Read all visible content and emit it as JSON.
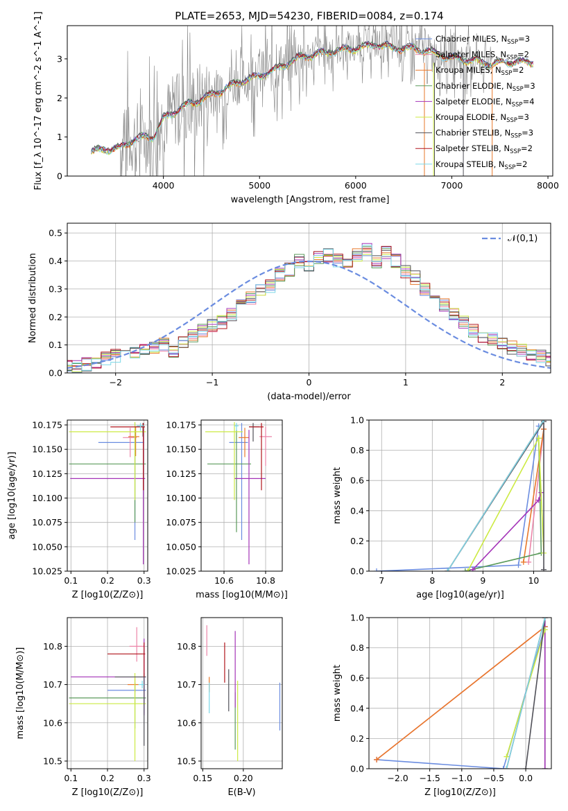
{
  "figure_title": "PLATE=2653, MJD=54230, FIBERID=0084, z=0.174",
  "colors": {
    "Chabrier MILES": "#6a8ce0",
    "Salpeter MILES": "#ec84a8",
    "Kroupa MILES": "#e8782a",
    "Chabrier ELODIE": "#5a9a5a",
    "Salpeter ELODIE": "#a434b8",
    "Kroupa ELODIE": "#ccea42",
    "Chabrier STELIB": "#505058",
    "Salpeter STELIB": "#b0141c",
    "Kroupa STELIB": "#7ad8e8",
    "data": "#808080",
    "normal": "#6a8ce0"
  },
  "chart_data": [
    {
      "id": "spectrum",
      "type": "line",
      "xlabel": "wavelength [Angstrom, rest frame]",
      "ylabel": "Flux [f_λ 10^-17 erg cm^-2 s^-1 A^-1]",
      "xlim": [
        3000,
        8050
      ],
      "ylim": [
        0,
        3.85
      ],
      "xticks": [
        "4000",
        "5000",
        "6000",
        "7000",
        "8000"
      ],
      "yticks": [
        "0",
        "1",
        "2",
        "3"
      ],
      "grid": false,
      "legend_position": "upper-right",
      "continuum_points": [
        [
          3250,
          0.65
        ],
        [
          3400,
          0.72
        ],
        [
          3550,
          0.75
        ],
        [
          3700,
          0.98
        ],
        [
          3900,
          1.05
        ],
        [
          4000,
          1.5
        ],
        [
          4200,
          1.8
        ],
        [
          4500,
          2.1
        ],
        [
          4800,
          2.45
        ],
        [
          5000,
          2.6
        ],
        [
          5200,
          2.8
        ],
        [
          5400,
          3.05
        ],
        [
          5600,
          3.15
        ],
        [
          5800,
          3.25
        ],
        [
          6000,
          3.3
        ],
        [
          6200,
          3.4
        ],
        [
          6400,
          3.3
        ],
        [
          6600,
          3.3
        ],
        [
          6800,
          3.2
        ],
        [
          7000,
          3.05
        ],
        [
          7200,
          3.0
        ],
        [
          7400,
          2.9
        ],
        [
          7600,
          2.95
        ],
        [
          7800,
          2.95
        ]
      ],
      "data_noise_start": 3550,
      "data_noise_end": 7420,
      "series": [
        {
          "name": "Chabrier MILES",
          "nssp": "3"
        },
        {
          "name": "Salpeter MILES",
          "nssp": "2"
        },
        {
          "name": "Kroupa MILES",
          "nssp": "2"
        },
        {
          "name": "Chabrier ELODIE",
          "nssp": "3"
        },
        {
          "name": "Salpeter ELODIE",
          "nssp": "4"
        },
        {
          "name": "Kroupa ELODIE",
          "nssp": "3"
        },
        {
          "name": "Chabrier STELIB",
          "nssp": "3"
        },
        {
          "name": "Salpeter STELIB",
          "nssp": "2"
        },
        {
          "name": "Kroupa STELIB",
          "nssp": "2"
        }
      ]
    },
    {
      "id": "residuals",
      "type": "step",
      "xlabel": "(data-model)/error",
      "ylabel": "Normed distribution",
      "xlim": [
        -2.5,
        2.5
      ],
      "ylim": [
        0,
        0.535
      ],
      "xticks": [
        "−2",
        "−1",
        "0",
        "1",
        "2"
      ],
      "xtick_values": [
        -2,
        -1,
        0,
        1,
        2
      ],
      "yticks": [
        "0.0",
        "0.1",
        "0.2",
        "0.3",
        "0.4",
        "0.5"
      ],
      "ytick_values": [
        0,
        0.1,
        0.2,
        0.3,
        0.4,
        0.5
      ],
      "grid": true,
      "legend": "𝒩(0,1)",
      "bin_width": 0.1,
      "bin_start": -2.55,
      "base_values": [
        0.02,
        0.02,
        0.03,
        0.04,
        0.05,
        0.06,
        0.065,
        0.07,
        0.09,
        0.09,
        0.1,
        0.08,
        0.11,
        0.13,
        0.15,
        0.17,
        0.18,
        0.21,
        0.24,
        0.27,
        0.3,
        0.31,
        0.35,
        0.37,
        0.4,
        0.38,
        0.41,
        0.42,
        0.4,
        0.39,
        0.42,
        0.44,
        0.4,
        0.43,
        0.4,
        0.36,
        0.34,
        0.3,
        0.27,
        0.24,
        0.21,
        0.18,
        0.15,
        0.13,
        0.12,
        0.1,
        0.09,
        0.08,
        0.07,
        0.06,
        0.05,
        0.04
      ]
    },
    {
      "id": "age_vs_Z",
      "type": "errorbar",
      "xlabel": "Z [log10(Z/Z⊙)]",
      "ylabel": "age [log10(age/yr)]",
      "xlim": [
        0.09,
        0.31
      ],
      "ylim": [
        10.025,
        10.18
      ],
      "xticks": [
        "0.1",
        "0.2",
        "0.3"
      ],
      "xtick_values": [
        0.1,
        0.2,
        0.3
      ],
      "yticks": [
        "10.025",
        "10.050",
        "10.075",
        "10.100",
        "10.125",
        "10.150",
        "10.175"
      ],
      "ytick_values": [
        10.025,
        10.05,
        10.075,
        10.1,
        10.125,
        10.15,
        10.175
      ],
      "points": [
        {
          "series": "Chabrier MILES",
          "x": 0.275,
          "y": 10.157,
          "xerr": [
            0.1,
            0.025
          ],
          "yerr": [
            0.1,
            0.02
          ]
        },
        {
          "series": "Salpeter MILES",
          "x": 0.262,
          "y": 10.162,
          "xerr": [
            0.02,
            0.018
          ],
          "yerr": [
            0.02,
            0.01
          ]
        },
        {
          "series": "Kroupa MILES",
          "x": 0.277,
          "y": 10.163,
          "xerr": [
            0.02,
            0.01
          ],
          "yerr": [
            0.02,
            0.01
          ]
        },
        {
          "series": "Chabrier ELODIE",
          "x": 0.275,
          "y": 10.135,
          "xerr": [
            0.18,
            0.03
          ],
          "yerr": [
            0.06,
            0.035
          ]
        },
        {
          "series": "Salpeter ELODIE",
          "x": 0.298,
          "y": 10.12,
          "xerr": [
            0.2,
            0.005
          ],
          "yerr": [
            0.088,
            0.05
          ]
        },
        {
          "series": "Kroupa ELODIE",
          "x": 0.275,
          "y": 10.168,
          "xerr": [
            0.18,
            0.03
          ],
          "yerr": [
            0.07,
            0.01
          ]
        },
        {
          "series": "Chabrier STELIB",
          "x": 0.297,
          "y": 10.173,
          "xerr": [
            0.02,
            0.005
          ],
          "yerr": [
            0.01,
            0.004
          ]
        },
        {
          "series": "Salpeter STELIB",
          "x": 0.298,
          "y": 10.173,
          "xerr": [
            0.09,
            0.004
          ],
          "yerr": [
            0.065,
            0.004
          ]
        },
        {
          "series": "Kroupa STELIB",
          "x": 0.29,
          "y": 10.174,
          "xerr": [
            0.01,
            0.01
          ],
          "yerr": [
            0.005,
            0.003
          ]
        }
      ]
    },
    {
      "id": "age_vs_mass",
      "type": "errorbar",
      "xlabel": "mass [log10(M/M⊙)]",
      "xlim": [
        10.49,
        10.88
      ],
      "ylim": [
        10.025,
        10.18
      ],
      "xticks": [
        "10.6",
        "10.8"
      ],
      "xtick_values": [
        10.6,
        10.8
      ],
      "yticks": [
        "10.025",
        "10.050",
        "10.075",
        "10.100",
        "10.125",
        "10.150",
        "10.175"
      ],
      "ytick_values": [
        10.025,
        10.05,
        10.075,
        10.1,
        10.125,
        10.15,
        10.175
      ],
      "points": [
        {
          "series": "Chabrier MILES",
          "x": 10.685,
          "y": 10.157,
          "xerr": [
            0.06,
            0.03
          ],
          "yerr": [
            0.1,
            0.02
          ]
        },
        {
          "series": "Salpeter MILES",
          "x": 10.8,
          "y": 10.163,
          "xerr": [
            0.03,
            0.03
          ],
          "yerr": [
            0.03,
            0.01
          ]
        },
        {
          "series": "Kroupa MILES",
          "x": 10.7,
          "y": 10.162,
          "xerr": [
            0.03,
            0.02
          ],
          "yerr": [
            0.02,
            0.01
          ]
        },
        {
          "series": "Chabrier ELODIE",
          "x": 10.66,
          "y": 10.135,
          "xerr": [
            0.14,
            0.07
          ],
          "yerr": [
            0.07,
            0.035
          ]
        },
        {
          "series": "Salpeter ELODIE",
          "x": 10.72,
          "y": 10.12,
          "xerr": [
            0.07,
            0.08
          ],
          "yerr": [
            0.088,
            0.05
          ]
        },
        {
          "series": "Kroupa ELODIE",
          "x": 10.65,
          "y": 10.168,
          "xerr": [
            0.14,
            0.04
          ],
          "yerr": [
            0.07,
            0.01
          ]
        },
        {
          "series": "Chabrier STELIB",
          "x": 10.74,
          "y": 10.173,
          "xerr": [
            0.02,
            0.03
          ],
          "yerr": [
            0.015,
            0.004
          ]
        },
        {
          "series": "Salpeter STELIB",
          "x": 10.78,
          "y": 10.173,
          "xerr": [
            0.06,
            0.01
          ],
          "yerr": [
            0.065,
            0.004
          ]
        },
        {
          "series": "Kroupa STELIB",
          "x": 10.66,
          "y": 10.174,
          "xerr": [
            0.01,
            0.01
          ],
          "yerr": [
            0.005,
            0.003
          ]
        }
      ]
    },
    {
      "id": "mass_weight_vs_age",
      "type": "line",
      "xlabel": "age [log10(age/yr)]",
      "ylabel": "mass weight",
      "xlim": [
        6.75,
        10.35
      ],
      "ylim": [
        0,
        1.0
      ],
      "xticks": [
        "7",
        "8",
        "9",
        "10"
      ],
      "xtick_values": [
        7,
        8,
        9,
        10
      ],
      "yticks": [
        "0.0",
        "0.2",
        "0.4",
        "0.6",
        "0.8",
        "1.0"
      ],
      "ytick_values": [
        0,
        0.2,
        0.4,
        0.6,
        0.8,
        1.0
      ],
      "grid": true,
      "series": [
        {
          "name": "Chabrier MILES",
          "x": [
            6.9,
            9.7,
            10.1
          ],
          "y": [
            0.0,
            0.04,
            0.96
          ]
        },
        {
          "name": "Salpeter MILES",
          "x": [
            9.9,
            10.2
          ],
          "y": [
            0.06,
            0.94
          ]
        },
        {
          "name": "Kroupa MILES",
          "x": [
            9.8,
            10.2
          ],
          "y": [
            0.06,
            0.94
          ]
        },
        {
          "name": "Chabrier ELODIE",
          "x": [
            8.65,
            10.15,
            10.1
          ],
          "y": [
            0.0,
            0.12,
            0.88
          ]
        },
        {
          "name": "Salpeter ELODIE",
          "x": [
            8.8,
            10.1,
            10.15
          ],
          "y": [
            0.01,
            0.47,
            0.52
          ]
        },
        {
          "name": "Kroupa ELODIE",
          "x": [
            8.7,
            10.1,
            10.2
          ],
          "y": [
            0.0,
            0.88,
            0.12
          ]
        },
        {
          "name": "Chabrier STELIB",
          "x": [
            8.3,
            10.2,
            10.2
          ],
          "y": [
            0.0,
            0.99,
            0.01
          ]
        },
        {
          "name": "Salpeter STELIB",
          "x": [
            8.3,
            10.2
          ],
          "y": [
            0.0,
            1.0
          ]
        },
        {
          "name": "Kroupa STELIB",
          "x": [
            8.3,
            10.2
          ],
          "y": [
            0.0,
            1.0
          ]
        }
      ]
    },
    {
      "id": "mass_vs_Z",
      "type": "errorbar",
      "xlabel": "Z [log10(Z/Z⊙)]",
      "ylabel": "mass [log10(M/M⊙)]",
      "xlim": [
        0.09,
        0.31
      ],
      "ylim": [
        10.48,
        10.875
      ],
      "xticks": [
        "0.1",
        "0.2",
        "0.3"
      ],
      "xtick_values": [
        0.1,
        0.2,
        0.3
      ],
      "yticks": [
        "10.5",
        "10.6",
        "10.7",
        "10.8"
      ],
      "ytick_values": [
        10.5,
        10.6,
        10.7,
        10.8
      ],
      "points": [
        {
          "series": "Chabrier MILES",
          "x": 0.3,
          "y": 10.685,
          "xerr": [
            0.1,
            0.005
          ],
          "yerr": [
            0.06,
            0.03
          ]
        },
        {
          "series": "Salpeter MILES",
          "x": 0.28,
          "y": 10.8,
          "xerr": [
            0.02,
            0.02
          ],
          "yerr": [
            0.04,
            0.05
          ]
        },
        {
          "series": "Kroupa MILES",
          "x": 0.275,
          "y": 10.7,
          "xerr": [
            0.02,
            0.01
          ],
          "yerr": [
            0.02,
            0.02
          ]
        },
        {
          "series": "Chabrier ELODIE",
          "x": 0.275,
          "y": 10.665,
          "xerr": [
            0.18,
            0.03
          ],
          "yerr": [
            0.08,
            0.04
          ]
        },
        {
          "series": "Salpeter ELODIE",
          "x": 0.3,
          "y": 10.72,
          "xerr": [
            0.2,
            0.005
          ],
          "yerr": [
            0.1,
            0.1
          ]
        },
        {
          "series": "Kroupa ELODIE",
          "x": 0.275,
          "y": 10.65,
          "xerr": [
            0.18,
            0.03
          ],
          "yerr": [
            0.15,
            0.08
          ]
        },
        {
          "series": "Chabrier STELIB",
          "x": 0.3,
          "y": 10.72,
          "xerr": [
            0.08,
            0.005
          ],
          "yerr": [
            0.18,
            0.01
          ]
        },
        {
          "series": "Salpeter STELIB",
          "x": 0.3,
          "y": 10.78,
          "xerr": [
            0.1,
            0.003
          ],
          "yerr": [
            0.06,
            0.03
          ]
        },
        {
          "series": "Kroupa STELIB",
          "x": 0.295,
          "y": 10.7,
          "xerr": [
            0.01,
            0.005
          ],
          "yerr": [
            0.01,
            0.01
          ]
        }
      ]
    },
    {
      "id": "mass_vs_ebv",
      "type": "errorbar",
      "xlabel": "E(B-V)",
      "xlim": [
        0.148,
        0.248
      ],
      "ylim": [
        10.48,
        10.875
      ],
      "xticks": [
        "0.15",
        "0.20"
      ],
      "xtick_values": [
        0.15,
        0.2
      ],
      "yticks": [
        "10.5",
        "10.6",
        "10.7",
        "10.8"
      ],
      "ytick_values": [
        10.5,
        10.6,
        10.7,
        10.8
      ],
      "points": [
        {
          "series": "Chabrier MILES",
          "x": 0.245,
          "y": 10.64,
          "yerr": [
            0.06,
            0.065
          ]
        },
        {
          "series": "Salpeter MILES",
          "x": 0.155,
          "y": 10.815,
          "yerr": [
            0.04,
            0.04
          ]
        },
        {
          "series": "Kroupa MILES",
          "x": 0.158,
          "y": 10.7,
          "yerr": [
            0.02,
            0.02
          ]
        },
        {
          "series": "Chabrier ELODIE",
          "x": 0.19,
          "y": 10.65,
          "yerr": [
            0.12,
            0.03
          ]
        },
        {
          "series": "Salpeter ELODIE",
          "x": 0.19,
          "y": 10.74,
          "yerr": [
            0.1,
            0.1
          ]
        },
        {
          "series": "Kroupa ELODIE",
          "x": 0.193,
          "y": 10.64,
          "yerr": [
            0.14,
            0.07
          ]
        },
        {
          "series": "Chabrier STELIB",
          "x": 0.182,
          "y": 10.685,
          "yerr": [
            0.055,
            0.055
          ]
        },
        {
          "series": "Salpeter STELIB",
          "x": 0.177,
          "y": 10.745,
          "yerr": [
            0.04,
            0.065
          ]
        },
        {
          "series": "Kroupa STELIB",
          "x": 0.158,
          "y": 10.665,
          "yerr": [
            0.04,
            0.04
          ]
        }
      ]
    },
    {
      "id": "mass_weight_vs_Z",
      "type": "line",
      "xlabel": "Z [log10(Z/Z⊙)]",
      "ylabel": "mass weight",
      "xlim": [
        -2.45,
        0.4
      ],
      "ylim": [
        0,
        1.0
      ],
      "xticks": [
        "−2.0",
        "−1.5",
        "−1.0",
        "−0.5",
        "0.0"
      ],
      "xtick_values": [
        -2.0,
        -1.5,
        -1.0,
        -0.5,
        0.0
      ],
      "yticks": [
        "0.0",
        "0.2",
        "0.4",
        "0.6",
        "0.8",
        "1.0"
      ],
      "ytick_values": [
        0,
        0.2,
        0.4,
        0.6,
        0.8,
        1.0
      ],
      "grid": true,
      "series": [
        {
          "name": "Chabrier MILES",
          "x": [
            -2.33,
            -0.35,
            0.3
          ],
          "y": [
            0.06,
            0.0,
            0.94
          ]
        },
        {
          "name": "Salpeter MILES",
          "x": [
            -2.33,
            0.3
          ],
          "y": [
            0.06,
            0.94
          ]
        },
        {
          "name": "Kroupa MILES",
          "x": [
            -2.33,
            0.3
          ],
          "y": [
            0.06,
            0.94
          ]
        },
        {
          "name": "Chabrier ELODIE",
          "x": [
            0.3,
            0.3
          ],
          "y": [
            0.0,
            1.0
          ]
        },
        {
          "name": "Salpeter ELODIE",
          "x": [
            0.3,
            0.3
          ],
          "y": [
            0.0,
            1.0
          ]
        },
        {
          "name": "Kroupa ELODIE",
          "x": [
            -0.3,
            0.3
          ],
          "y": [
            0.08,
            0.92
          ]
        },
        {
          "name": "Chabrier STELIB",
          "x": [
            0.0,
            0.3
          ],
          "y": [
            0.0,
            1.0
          ]
        },
        {
          "name": "Salpeter STELIB",
          "x": [
            -0.3,
            0.3
          ],
          "y": [
            0.0,
            1.0
          ]
        },
        {
          "name": "Kroupa STELIB",
          "x": [
            -0.3,
            0.3
          ],
          "y": [
            0.0,
            1.0
          ]
        }
      ]
    }
  ]
}
